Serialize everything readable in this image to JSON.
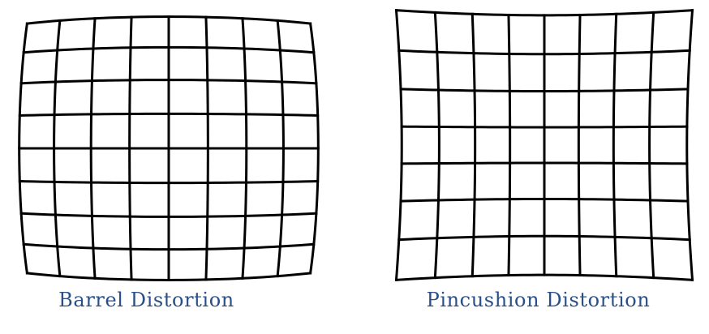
{
  "diagrams": [
    {
      "id": "barrel",
      "caption": "Barrel Distortion",
      "distortion": "barrel",
      "grid_cells": [
        8,
        8
      ]
    },
    {
      "id": "pincushion",
      "caption": "Pincushion Distortion",
      "distortion": "pincushion",
      "grid_cells": [
        8,
        7
      ]
    }
  ],
  "colors": {
    "grid_line": "#000000",
    "caption_text": "#2a4f86",
    "background": "#ffffff"
  }
}
